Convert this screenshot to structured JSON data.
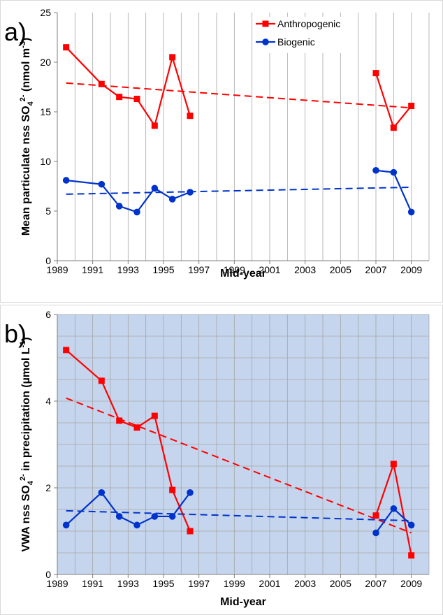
{
  "chart_data": [
    {
      "panel": "a)",
      "type": "line",
      "xlabel": "Mid-year",
      "ylabel": "Mean particulate nss SO4 2- (nmol m-3)",
      "ylabel_parts": {
        "pre": "Mean particulate nss SO",
        "sub": "4",
        "sup": "2-",
        "post": " (nmol m",
        "sup2": "-3",
        "post2": ")"
      },
      "xlim": [
        1989,
        2010
      ],
      "ylim": [
        0,
        25
      ],
      "xticks": [
        1989,
        1991,
        1993,
        1995,
        1997,
        1999,
        2001,
        2003,
        2005,
        2007,
        2009
      ],
      "yticks": [
        0,
        5,
        10,
        15,
        20,
        25
      ],
      "grid": "vertical",
      "legend": "top-center",
      "background": "#ffffff",
      "series": [
        {
          "name": "Anthropogenic",
          "color": "#ff0000",
          "marker": "square",
          "segments": [
            {
              "x": [
                1989.5,
                1991.5,
                1992.5,
                1993.5,
                1994.5,
                1995.5,
                1996.5
              ],
              "y": [
                21.5,
                17.8,
                16.5,
                16.3,
                13.6,
                20.5,
                14.6
              ]
            },
            {
              "x": [
                2007.0,
                2008.0,
                2009.0
              ],
              "y": [
                18.9,
                13.4,
                15.6
              ]
            }
          ],
          "trend": {
            "x": [
              1989.5,
              2009.0
            ],
            "y": [
              17.9,
              15.4
            ]
          }
        },
        {
          "name": "Biogenic",
          "color": "#0033cc",
          "marker": "circle",
          "segments": [
            {
              "x": [
                1989.5,
                1991.5,
                1992.5,
                1993.5,
                1994.5,
                1995.5,
                1996.5
              ],
              "y": [
                8.1,
                7.7,
                5.5,
                4.9,
                7.3,
                6.2,
                6.9
              ]
            },
            {
              "x": [
                2007.0,
                2008.0,
                2009.0
              ],
              "y": [
                9.1,
                8.9,
                4.9
              ]
            }
          ],
          "trend": {
            "x": [
              1989.5,
              2009.0
            ],
            "y": [
              6.7,
              7.4
            ]
          }
        }
      ]
    },
    {
      "panel": "b)",
      "type": "line",
      "xlabel": "Mid-year",
      "ylabel": "VWA nss SO4 2- in precipitation (µmol L-1)",
      "ylabel_parts": {
        "pre": "VWA nss SO",
        "sub": "4",
        "sup": "2-",
        "post": " in precipitation (µmol L",
        "sup2": "-1",
        "post2": ")"
      },
      "xlim": [
        1989,
        2010
      ],
      "ylim": [
        0,
        6
      ],
      "xticks": [
        1989,
        1991,
        1993,
        1995,
        1997,
        1999,
        2001,
        2003,
        2005,
        2007,
        2009
      ],
      "yticks": [
        0,
        2,
        4,
        6
      ],
      "grid": "both",
      "background": "#c5d5ed",
      "series": [
        {
          "name": "Anthropogenic",
          "color": "#ff0000",
          "marker": "square",
          "segments": [
            {
              "x": [
                1989.5,
                1991.5,
                1992.5,
                1993.5,
                1994.5,
                1995.5,
                1996.5
              ],
              "y": [
                5.18,
                4.47,
                3.55,
                3.39,
                3.66,
                1.95,
                1.0
              ]
            },
            {
              "x": [
                2007.0,
                2008.0,
                2009.0
              ],
              "y": [
                1.36,
                2.55,
                0.44
              ]
            }
          ],
          "trend": {
            "x": [
              1989.5,
              2009.0
            ],
            "y": [
              4.07,
              0.96
            ]
          }
        },
        {
          "name": "Biogenic",
          "color": "#0033cc",
          "marker": "circle",
          "segments": [
            {
              "x": [
                1989.5,
                1991.5,
                1992.5,
                1993.5,
                1994.5,
                1995.5,
                1996.5
              ],
              "y": [
                1.14,
                1.89,
                1.34,
                1.14,
                1.34,
                1.34,
                1.89
              ]
            },
            {
              "x": [
                2007.0,
                2008.0,
                2009.0
              ],
              "y": [
                0.96,
                1.52,
                1.14
              ]
            }
          ],
          "trend": {
            "x": [
              1989.5,
              2009.0
            ],
            "y": [
              1.47,
              1.24
            ]
          }
        }
      ]
    }
  ]
}
